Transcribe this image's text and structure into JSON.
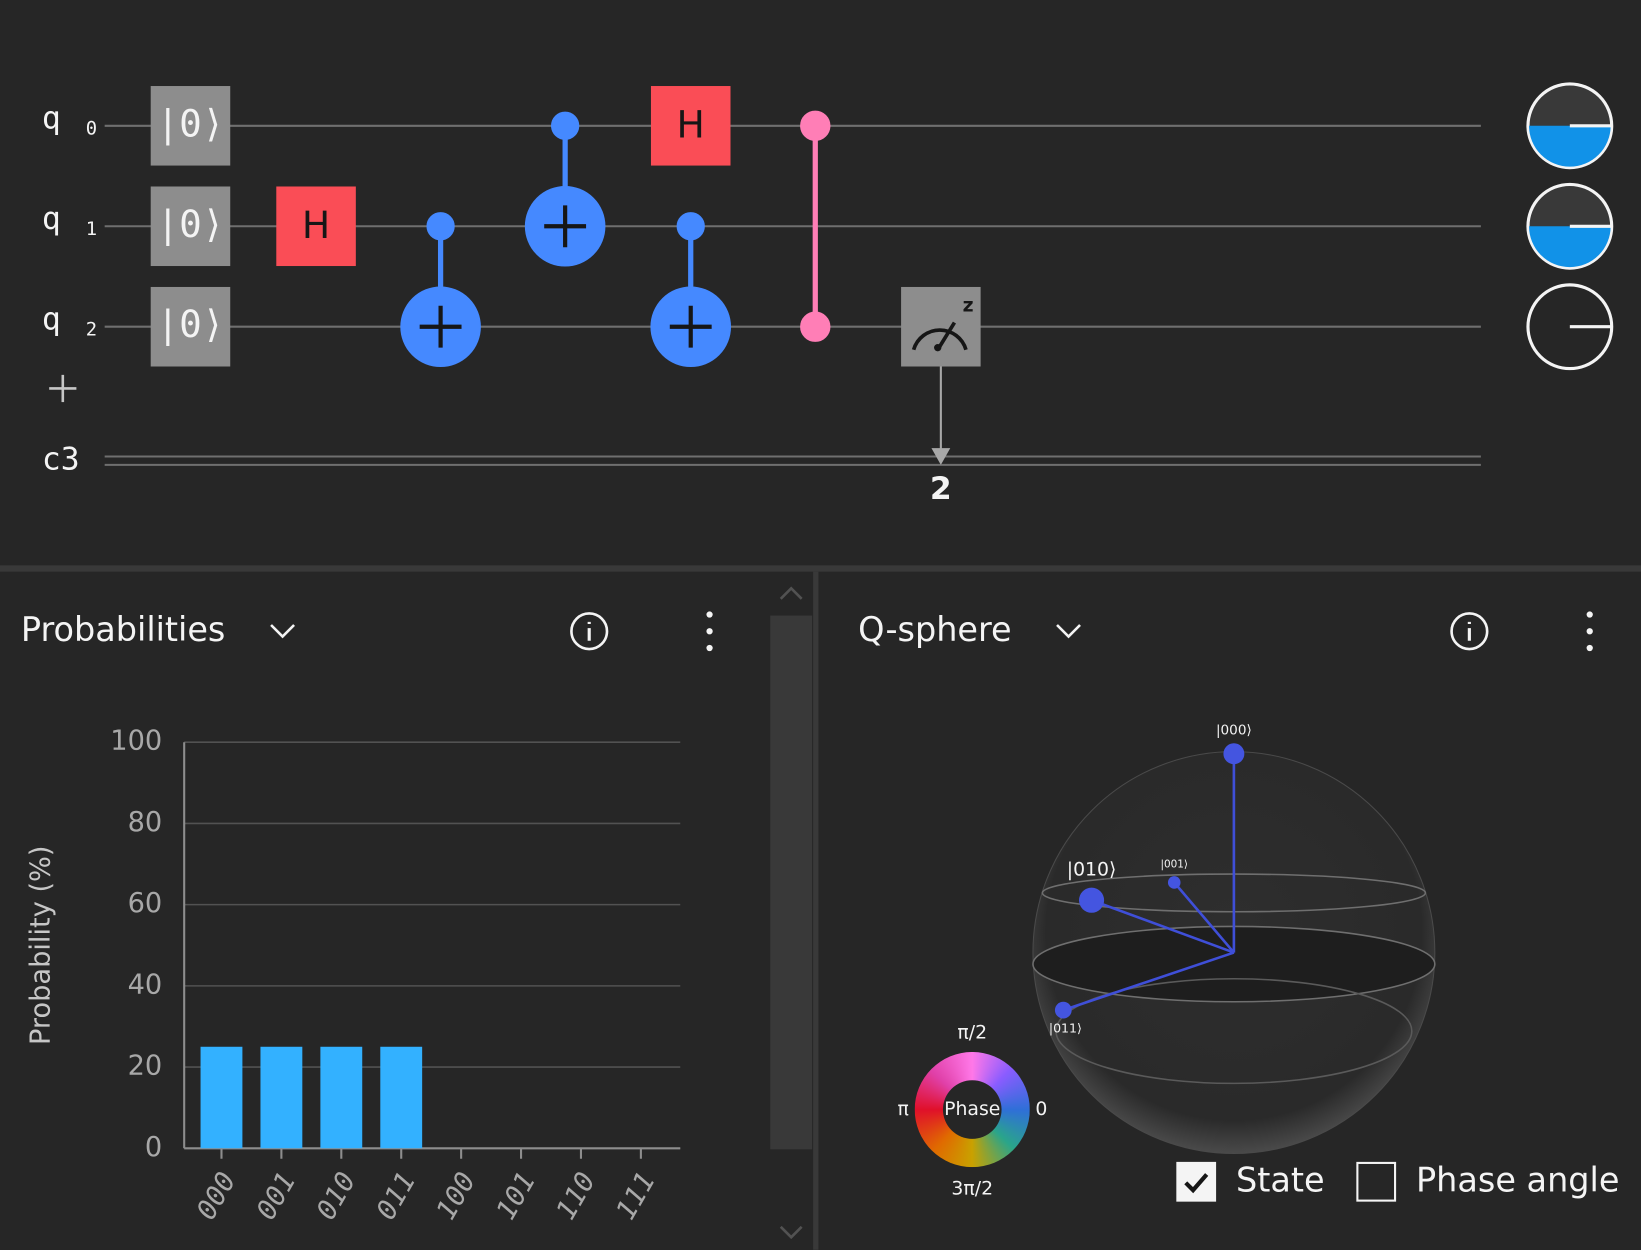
{
  "circuit": {
    "qubits": [
      {
        "name": "q",
        "index": "0"
      },
      {
        "name": "q",
        "index": "1"
      },
      {
        "name": "q",
        "index": "2"
      }
    ],
    "classical_register": "c3",
    "init_labels": [
      "|0⟩",
      "|0⟩",
      "|0⟩"
    ],
    "h_labels": [
      "H",
      "H"
    ],
    "measure_basis": "z",
    "measure_bit": "2"
  },
  "probabilities": {
    "title": "Probabilities"
  },
  "chart_data": {
    "type": "bar",
    "ylabel": "Probability (%)",
    "categories": [
      "000",
      "001",
      "010",
      "011",
      "100",
      "101",
      "110",
      "111"
    ],
    "values": [
      25,
      25,
      25,
      25,
      0,
      0,
      0,
      0
    ],
    "color": "#33b1ff",
    "ylim": [
      0,
      100
    ],
    "yticks": [
      0,
      20,
      40,
      60,
      80,
      100
    ],
    "grid": true
  },
  "qsphere": {
    "title": "Q-sphere",
    "states": [
      "|000⟩",
      "|010⟩",
      "|001⟩",
      "|011⟩"
    ],
    "phase_wheel": {
      "center": "Phase",
      "top": "π/2",
      "left": "π",
      "right": "0",
      "bottom": "3π/2"
    }
  },
  "options": [
    {
      "label": "State",
      "checked": true
    },
    {
      "label": "Phase angle",
      "checked": false
    }
  ]
}
